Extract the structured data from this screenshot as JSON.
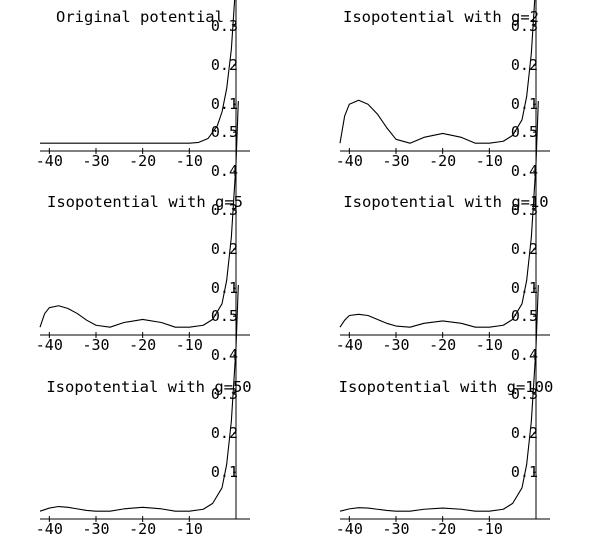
{
  "figure": {
    "panels": [
      {
        "title": "Original potential"
      },
      {
        "title": "Isopotential with g=2"
      },
      {
        "title": "Isopotential with g=5"
      },
      {
        "title": "Isopotential with g=10"
      },
      {
        "title": "Isopotential with g=50"
      },
      {
        "title": "Isopotential with g=100"
      }
    ],
    "x_ticks": [
      "-40",
      "-30",
      "-20",
      "-10"
    ],
    "y_ticks": [
      "0.1",
      "0.2",
      "0.3",
      "0.4",
      "0.5"
    ]
  },
  "chart_data": [
    {
      "type": "line",
      "title": "Original potential",
      "x_ticks": [
        -40,
        -30,
        -20,
        -10
      ],
      "y_ticks": [
        0.1,
        0.2,
        0.3,
        0.4,
        0.5
      ],
      "xlim": [
        -42,
        3
      ],
      "ylim": [
        -0.02,
        0.58
      ],
      "series": [
        {
          "x": [
            -42,
            -30,
            -20,
            -10,
            -8,
            -6,
            -4,
            -3,
            -2,
            -1,
            0,
            0.5
          ],
          "y": [
            0,
            0,
            0,
            0,
            0.002,
            0.012,
            0.045,
            0.08,
            0.14,
            0.24,
            0.42,
            0.58
          ]
        }
      ]
    },
    {
      "type": "line",
      "title": "Isopotential with g=2",
      "x_ticks": [
        -40,
        -30,
        -20,
        -10
      ],
      "y_ticks": [
        0.1,
        0.2,
        0.3,
        0.4,
        0.5
      ],
      "xlim": [
        -42,
        3
      ],
      "ylim": [
        -0.02,
        0.58
      ],
      "series": [
        {
          "x": [
            -42,
            -41,
            -40,
            -38,
            -36,
            -34,
            -32,
            -30,
            -27,
            -24,
            -20,
            -16,
            -13,
            -10,
            -7,
            -5,
            -3,
            -2,
            -1,
            0,
            0.5
          ],
          "y": [
            0,
            0.07,
            0.1,
            0.11,
            0.1,
            0.075,
            0.04,
            0.01,
            0,
            0.015,
            0.025,
            0.015,
            0,
            0,
            0.005,
            0.02,
            0.06,
            0.12,
            0.23,
            0.42,
            0.58
          ]
        }
      ]
    },
    {
      "type": "line",
      "title": "Isopotential with g=5",
      "x_ticks": [
        -40,
        -30,
        -20,
        -10
      ],
      "y_ticks": [
        0.1,
        0.2,
        0.3,
        0.4,
        0.5
      ],
      "xlim": [
        -42,
        3
      ],
      "ylim": [
        -0.02,
        0.58
      ],
      "series": [
        {
          "x": [
            -42,
            -41,
            -40,
            -38,
            -36,
            -34,
            -32,
            -30,
            -27,
            -24,
            -20,
            -16,
            -13,
            -10,
            -7,
            -5,
            -3,
            -2,
            -1,
            0,
            0.5
          ],
          "y": [
            0,
            0.035,
            0.05,
            0.055,
            0.048,
            0.035,
            0.018,
            0.005,
            0,
            0.012,
            0.02,
            0.012,
            0,
            0,
            0.005,
            0.02,
            0.06,
            0.12,
            0.23,
            0.42,
            0.58
          ]
        }
      ]
    },
    {
      "type": "line",
      "title": "Isopotential with g=10",
      "x_ticks": [
        -40,
        -30,
        -20,
        -10
      ],
      "y_ticks": [
        0.1,
        0.2,
        0.3,
        0.4,
        0.5
      ],
      "xlim": [
        -42,
        3
      ],
      "ylim": [
        -0.02,
        0.58
      ],
      "series": [
        {
          "x": [
            -42,
            -41,
            -40,
            -38,
            -36,
            -34,
            -32,
            -30,
            -27,
            -24,
            -20,
            -16,
            -13,
            -10,
            -7,
            -5,
            -3,
            -2,
            -1,
            0,
            0.5
          ],
          "y": [
            0,
            0.018,
            0.03,
            0.033,
            0.03,
            0.02,
            0.01,
            0.003,
            0,
            0.01,
            0.016,
            0.01,
            0,
            0,
            0.005,
            0.02,
            0.06,
            0.12,
            0.23,
            0.42,
            0.58
          ]
        }
      ]
    },
    {
      "type": "line",
      "title": "Isopotential with g=50",
      "x_ticks": [
        -40,
        -30,
        -20,
        -10
      ],
      "y_ticks": [
        0.1,
        0.2,
        0.3,
        0.4,
        0.5
      ],
      "xlim": [
        -42,
        3
      ],
      "ylim": [
        -0.02,
        0.58
      ],
      "series": [
        {
          "x": [
            -42,
            -40,
            -38,
            -36,
            -34,
            -32,
            -30,
            -27,
            -24,
            -20,
            -16,
            -13,
            -10,
            -7,
            -5,
            -3,
            -2,
            -1,
            0,
            0.5
          ],
          "y": [
            0,
            0.008,
            0.012,
            0.01,
            0.006,
            0.002,
            0,
            0,
            0.006,
            0.01,
            0.006,
            0,
            0,
            0.005,
            0.02,
            0.06,
            0.12,
            0.23,
            0.42,
            0.58
          ]
        }
      ]
    },
    {
      "type": "line",
      "title": "Isopotential with g=100",
      "x_ticks": [
        -40,
        -30,
        -20,
        -10
      ],
      "y_ticks": [
        0.1,
        0.2,
        0.3,
        0.4,
        0.5
      ],
      "xlim": [
        -42,
        3
      ],
      "ylim": [
        -0.02,
        0.58
      ],
      "series": [
        {
          "x": [
            -42,
            -40,
            -38,
            -36,
            -34,
            -32,
            -30,
            -27,
            -24,
            -20,
            -16,
            -13,
            -10,
            -7,
            -5,
            -3,
            -2,
            -1,
            0,
            0.5
          ],
          "y": [
            0,
            0.006,
            0.009,
            0.008,
            0.005,
            0.002,
            0,
            0,
            0.005,
            0.008,
            0.005,
            0,
            0,
            0.005,
            0.02,
            0.06,
            0.12,
            0.23,
            0.42,
            0.58
          ]
        }
      ]
    }
  ]
}
